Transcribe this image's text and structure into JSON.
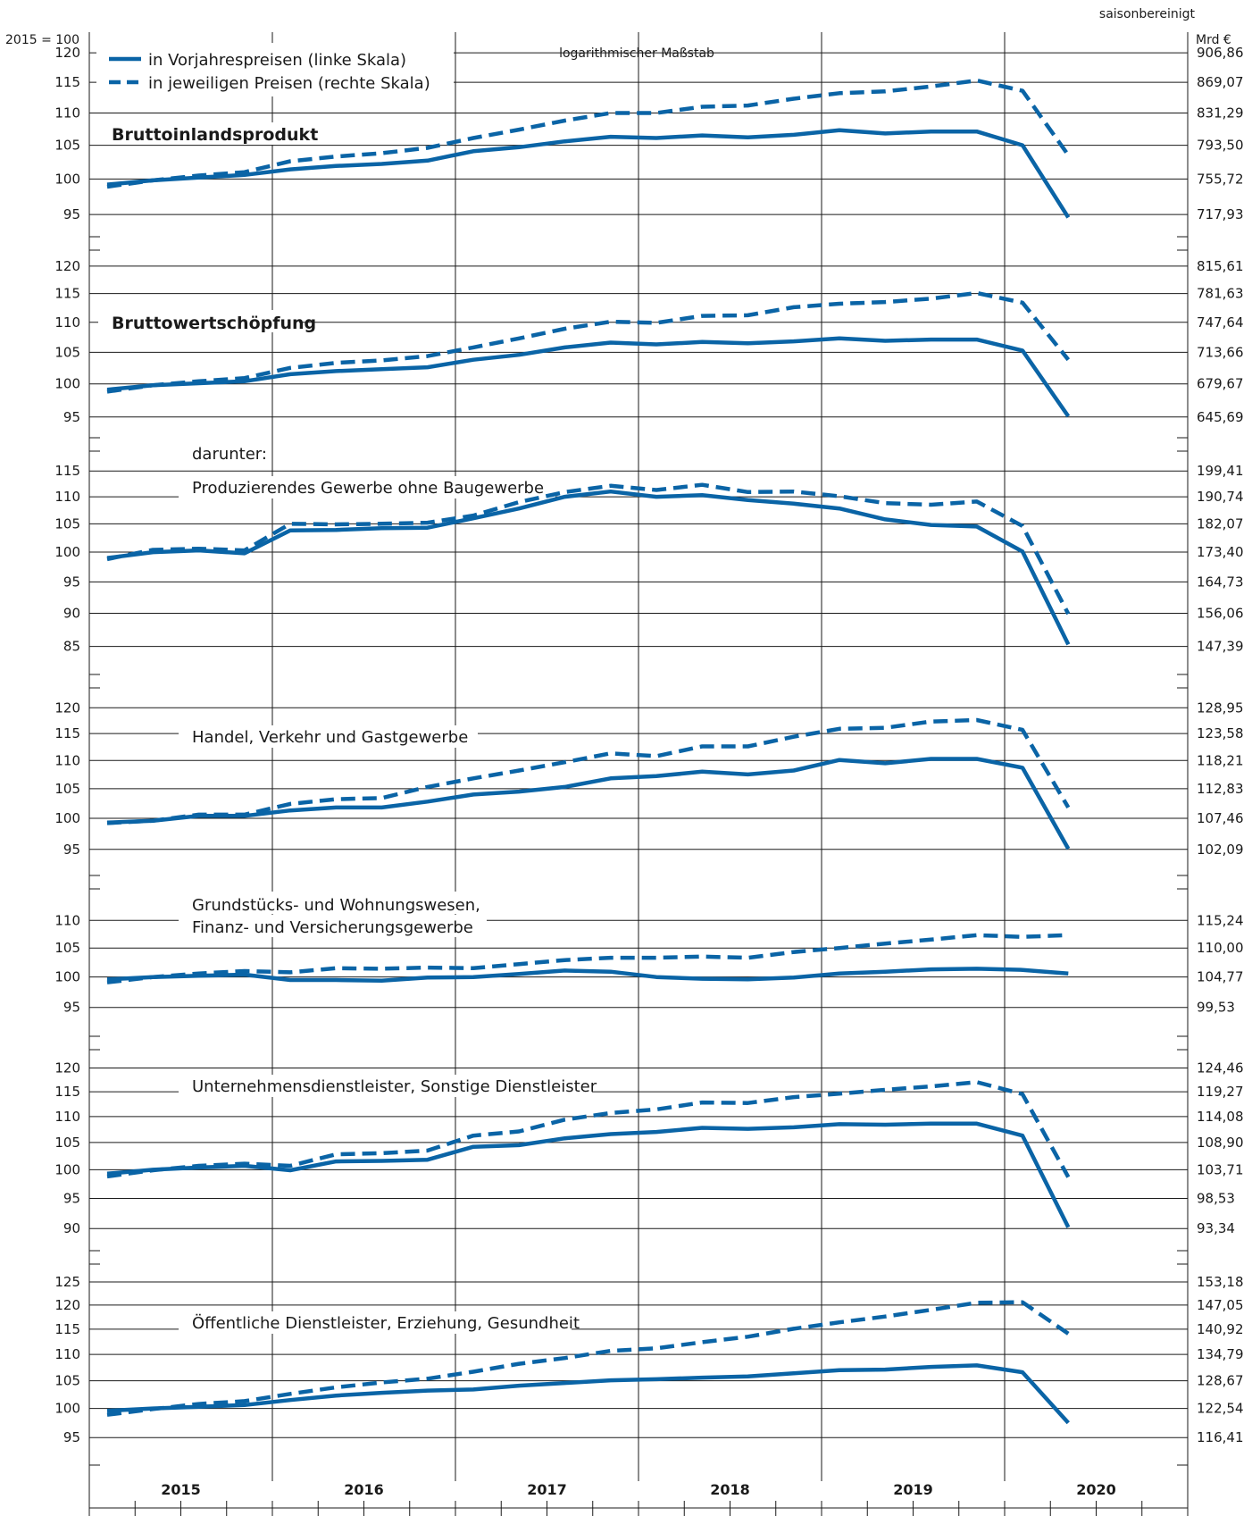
{
  "header": {
    "adjustment_note": "saisonbereinigt",
    "left_axis_unit": "2015 = 100",
    "right_axis_unit": "Mrd €",
    "scale_note": "logarithmischer Maßstab"
  },
  "legend": [
    {
      "label": "in Vorjahrespreisen (linke Skala)",
      "style": "solid"
    },
    {
      "label": "in jeweiligen Preisen (rechte Skala)",
      "style": "dashed"
    }
  ],
  "colors": {
    "series": "#0a64a6",
    "grid": "#1a1a1a"
  },
  "years": [
    "2015",
    "2016",
    "2017",
    "2018",
    "2019",
    "2020"
  ],
  "chart_data": [
    {
      "type": "line",
      "title": "Bruttoinlandsprodukt",
      "left_ticks": [
        "120",
        "115",
        "110",
        "105",
        "100",
        "95"
      ],
      "right_ticks": [
        "906,86",
        "869,07",
        "831,29",
        "793,50",
        "755,72",
        "717,93"
      ],
      "ylim": [
        92,
        123
      ],
      "x": [
        "2015 Q1",
        "2015 Q2",
        "2015 Q3",
        "2015 Q4",
        "2016 Q1",
        "2016 Q2",
        "2016 Q3",
        "2016 Q4",
        "2017 Q1",
        "2017 Q2",
        "2017 Q3",
        "2017 Q4",
        "2018 Q1",
        "2018 Q2",
        "2018 Q3",
        "2018 Q4",
        "2019 Q1",
        "2019 Q2",
        "2019 Q3",
        "2019 Q4",
        "2020 Q1",
        "2020 Q2"
      ],
      "series": [
        {
          "name": "in Vorjahrespreisen (linke Skala)",
          "values": [
            99.2,
            99.8,
            100.2,
            100.6,
            101.4,
            101.9,
            102.2,
            102.7,
            104.1,
            104.7,
            105.6,
            106.3,
            106.1,
            106.5,
            106.2,
            106.6,
            107.3,
            106.8,
            107.1,
            107.1,
            105.0,
            94.6
          ]
        },
        {
          "name": "in jeweiligen Preisen (rechte Skala)",
          "values": [
            98.9,
            99.8,
            100.5,
            101.0,
            102.6,
            103.3,
            103.8,
            104.6,
            106.1,
            107.4,
            108.8,
            110.0,
            110.0,
            111.0,
            111.2,
            112.3,
            113.2,
            113.5,
            114.3,
            115.3,
            113.6,
            103.5
          ]
        }
      ]
    },
    {
      "type": "line",
      "title": "Bruttowertschöpfung",
      "left_ticks": [
        "120",
        "115",
        "110",
        "105",
        "100",
        "95"
      ],
      "right_ticks": [
        "815,61",
        "781,63",
        "747,64",
        "713,66",
        "679,67",
        "645,69"
      ],
      "ylim": [
        92,
        123
      ],
      "x": [
        "2015 Q1",
        "2015 Q2",
        "2015 Q3",
        "2015 Q4",
        "2016 Q1",
        "2016 Q2",
        "2016 Q3",
        "2016 Q4",
        "2017 Q1",
        "2017 Q2",
        "2017 Q3",
        "2017 Q4",
        "2018 Q1",
        "2018 Q2",
        "2018 Q3",
        "2018 Q4",
        "2019 Q1",
        "2019 Q2",
        "2019 Q3",
        "2019 Q4",
        "2020 Q1",
        "2020 Q2"
      ],
      "series": [
        {
          "name": "in Vorjahrespreisen (linke Skala)",
          "values": [
            99.1,
            99.8,
            100.1,
            100.4,
            101.5,
            102.0,
            102.3,
            102.6,
            103.8,
            104.6,
            105.8,
            106.6,
            106.3,
            106.7,
            106.5,
            106.8,
            107.3,
            106.9,
            107.1,
            107.1,
            105.3,
            95.1
          ]
        },
        {
          "name": "in jeweiligen Preisen (rechte Skala)",
          "values": [
            98.8,
            99.8,
            100.4,
            100.9,
            102.5,
            103.3,
            103.7,
            104.4,
            105.8,
            107.3,
            108.9,
            110.1,
            109.9,
            111.1,
            111.2,
            112.6,
            113.2,
            113.5,
            114.1,
            115.1,
            113.4,
            103.8
          ]
        }
      ]
    },
    {
      "type": "line",
      "title": "Produzierendes Gewerbe ohne Baugewerbe",
      "subtitle": "darunter:",
      "left_ticks": [
        "115",
        "110",
        "105",
        "100",
        "95",
        "90",
        "85"
      ],
      "right_ticks": [
        "199,41",
        "190,74",
        "182,07",
        "173,40",
        "164,73",
        "156,06",
        "147,39"
      ],
      "ylim": [
        81,
        119
      ],
      "x": [
        "2015 Q1",
        "2015 Q2",
        "2015 Q3",
        "2015 Q4",
        "2016 Q1",
        "2016 Q2",
        "2016 Q3",
        "2016 Q4",
        "2017 Q1",
        "2017 Q2",
        "2017 Q3",
        "2017 Q4",
        "2018 Q1",
        "2018 Q2",
        "2018 Q3",
        "2018 Q4",
        "2019 Q1",
        "2019 Q2",
        "2019 Q3",
        "2019 Q4",
        "2020 Q1",
        "2020 Q2"
      ],
      "series": [
        {
          "name": "in Vorjahrespreisen (linke Skala)",
          "values": [
            99.0,
            100.0,
            100.3,
            99.8,
            103.8,
            103.9,
            104.2,
            104.3,
            106.0,
            107.8,
            110.0,
            111.0,
            110.0,
            110.3,
            109.4,
            108.7,
            107.8,
            105.8,
            104.8,
            104.5,
            100.1,
            85.3
          ]
        },
        {
          "name": "in jeweiligen Preisen (rechte Skala)",
          "values": [
            98.8,
            100.4,
            100.6,
            100.3,
            105.0,
            104.9,
            105.0,
            105.2,
            106.5,
            109.0,
            110.9,
            112.1,
            111.3,
            112.3,
            110.9,
            111.0,
            110.1,
            108.8,
            108.5,
            109.1,
            104.6,
            89.9
          ]
        }
      ]
    },
    {
      "type": "line",
      "title": "Handel, Verkehr und Gastgewerbe",
      "left_ticks": [
        "120",
        "115",
        "110",
        "105",
        "100",
        "95"
      ],
      "right_ticks": [
        "128,95",
        "123,58",
        "118,21",
        "112,83",
        "107,46",
        "102,09"
      ],
      "ylim": [
        91,
        124
      ],
      "x": [
        "2015 Q1",
        "2015 Q2",
        "2015 Q3",
        "2015 Q4",
        "2016 Q1",
        "2016 Q2",
        "2016 Q3",
        "2016 Q4",
        "2017 Q1",
        "2017 Q2",
        "2017 Q3",
        "2017 Q4",
        "2018 Q1",
        "2018 Q2",
        "2018 Q3",
        "2018 Q4",
        "2019 Q1",
        "2019 Q2",
        "2019 Q3",
        "2019 Q4",
        "2020 Q1",
        "2020 Q2"
      ],
      "series": [
        {
          "name": "in Vorjahrespreisen (linke Skala)",
          "values": [
            99.3,
            99.6,
            100.4,
            100.4,
            101.3,
            101.8,
            101.8,
            102.8,
            104.0,
            104.5,
            105.3,
            106.8,
            107.2,
            108.0,
            107.5,
            108.2,
            110.1,
            109.5,
            110.3,
            110.3,
            108.7,
            95.1
          ]
        },
        {
          "name": "in jeweiligen Preisen (rechte Skala)",
          "values": [
            99.2,
            99.6,
            100.6,
            100.6,
            102.4,
            103.2,
            103.4,
            105.3,
            106.8,
            108.2,
            109.7,
            111.3,
            110.8,
            112.6,
            112.6,
            114.4,
            115.9,
            116.1,
            117.3,
            117.6,
            115.7,
            101.8
          ]
        }
      ]
    },
    {
      "type": "line",
      "title": "Grundstücks- und Wohnungswesen, Finanz- und Versicherungsgewerbe",
      "left_ticks": [
        "110",
        "105",
        "100",
        "95"
      ],
      "right_ticks": [
        "115,24",
        "110,00",
        "104,77",
        "99,53"
      ],
      "ylim": [
        90.5,
        116
      ],
      "x": [
        "2015 Q1",
        "2015 Q2",
        "2015 Q3",
        "2015 Q4",
        "2016 Q1",
        "2016 Q2",
        "2016 Q3",
        "2016 Q4",
        "2017 Q1",
        "2017 Q2",
        "2017 Q3",
        "2017 Q4",
        "2018 Q1",
        "2018 Q2",
        "2018 Q3",
        "2018 Q4",
        "2019 Q1",
        "2019 Q2",
        "2019 Q3",
        "2019 Q4",
        "2020 Q1",
        "2020 Q2"
      ],
      "series": [
        {
          "name": "in Vorjahrespreisen (linke Skala)",
          "values": [
            99.6,
            100.0,
            100.2,
            100.4,
            99.5,
            99.5,
            99.4,
            99.9,
            100.0,
            100.5,
            101.1,
            100.9,
            100.0,
            99.7,
            99.6,
            99.9,
            100.6,
            100.9,
            101.3,
            101.4,
            101.2,
            100.6
          ]
        },
        {
          "name": "in jeweiligen Preisen (rechte Skala)",
          "values": [
            99.1,
            100.0,
            100.6,
            101.0,
            100.8,
            101.5,
            101.4,
            101.6,
            101.5,
            102.2,
            102.9,
            103.3,
            103.3,
            103.5,
            103.3,
            104.3,
            105.0,
            105.8,
            106.5,
            107.3,
            107.0,
            107.3
          ]
        }
      ]
    },
    {
      "type": "line",
      "title": "Unternehmensdienstleister, Sonstige Dienstleister",
      "left_ticks": [
        "120",
        "115",
        "110",
        "105",
        "100",
        "95",
        "90"
      ],
      "right_ticks": [
        "124,46",
        "119,27",
        "114,08",
        "108,90",
        "103,71",
        "98,53",
        "93,34"
      ],
      "ylim": [
        86.5,
        124
      ],
      "x": [
        "2015 Q1",
        "2015 Q2",
        "2015 Q3",
        "2015 Q4",
        "2016 Q1",
        "2016 Q2",
        "2016 Q3",
        "2016 Q4",
        "2017 Q1",
        "2017 Q2",
        "2017 Q3",
        "2017 Q4",
        "2018 Q1",
        "2018 Q2",
        "2018 Q3",
        "2018 Q4",
        "2019 Q1",
        "2019 Q2",
        "2019 Q3",
        "2019 Q4",
        "2020 Q1",
        "2020 Q2"
      ],
      "series": [
        {
          "name": "in Vorjahrespreisen (linke Skala)",
          "values": [
            99.3,
            100.0,
            100.4,
            100.7,
            99.9,
            101.5,
            101.6,
            101.8,
            104.2,
            104.5,
            105.8,
            106.6,
            107.0,
            107.8,
            107.6,
            107.9,
            108.5,
            108.4,
            108.6,
            108.6,
            106.3,
            90.2
          ]
        },
        {
          "name": "in jeweiligen Preisen (rechte Skala)",
          "values": [
            98.8,
            99.9,
            100.7,
            101.1,
            100.7,
            102.8,
            103.0,
            103.5,
            106.3,
            107.1,
            109.4,
            110.7,
            111.4,
            112.8,
            112.7,
            113.9,
            114.6,
            115.4,
            116.1,
            117.0,
            114.5,
            98.7
          ]
        }
      ]
    },
    {
      "type": "line",
      "title": "Öffentliche Dienstleister, Erziehung, Gesundheit",
      "left_ticks": [
        "125",
        "120",
        "115",
        "110",
        "105",
        "100",
        "95"
      ],
      "right_ticks": [
        "153,18",
        "147,05",
        "140,92",
        "134,79",
        "128,67",
        "122,54",
        "116,41"
      ],
      "ylim": [
        90.5,
        129
      ],
      "x": [
        "2015 Q1",
        "2015 Q2",
        "2015 Q3",
        "2015 Q4",
        "2016 Q1",
        "2016 Q2",
        "2016 Q3",
        "2016 Q4",
        "2017 Q1",
        "2017 Q2",
        "2017 Q3",
        "2017 Q4",
        "2018 Q1",
        "2018 Q2",
        "2018 Q3",
        "2018 Q4",
        "2019 Q1",
        "2019 Q2",
        "2019 Q3",
        "2019 Q4",
        "2020 Q1",
        "2020 Q2"
      ],
      "series": [
        {
          "name": "in Vorjahrespreisen (linke Skala)",
          "values": [
            99.6,
            100.0,
            100.3,
            100.6,
            101.5,
            102.3,
            102.8,
            103.2,
            103.4,
            104.1,
            104.6,
            105.1,
            105.3,
            105.6,
            105.8,
            106.4,
            107.0,
            107.1,
            107.6,
            107.9,
            106.6,
            97.5
          ]
        },
        {
          "name": "in jeweiligen Preisen (rechte Skala)",
          "values": [
            98.9,
            99.9,
            100.8,
            101.3,
            102.6,
            103.8,
            104.7,
            105.4,
            106.7,
            108.2,
            109.3,
            110.7,
            111.2,
            112.4,
            113.5,
            115.1,
            116.4,
            117.6,
            119.0,
            120.5,
            120.6,
            114.1
          ]
        }
      ]
    }
  ]
}
